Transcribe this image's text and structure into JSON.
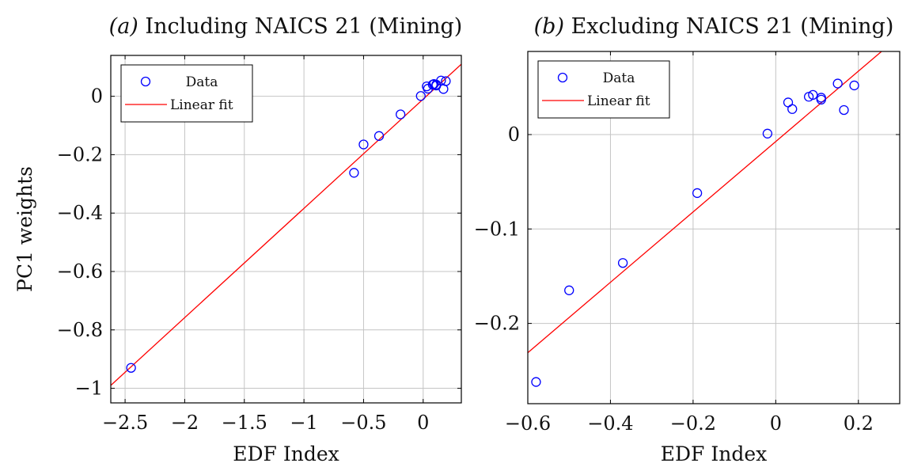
{
  "chart_data": [
    {
      "type": "scatter",
      "title_prefix": "(a)",
      "title": "Including NAICS 21 (Mining)",
      "xlabel": "EDF Index",
      "ylabel": "PC1 weights",
      "xlim": [
        -2.62,
        0.32
      ],
      "ylim": [
        -1.05,
        0.14
      ],
      "xticks": [
        -2.5,
        -2,
        -1.5,
        -1,
        -0.5,
        0
      ],
      "xtick_labels": [
        "−2.5",
        "−2",
        "−1.5",
        "−1",
        "−0.5",
        "0"
      ],
      "yticks": [
        0,
        -0.2,
        -0.4,
        -0.6,
        -0.8,
        -1
      ],
      "ytick_labels": [
        "0",
        "−0.2",
        "−0.4",
        "−0.6",
        "−0.8",
        "−1"
      ],
      "grid": true,
      "legend": {
        "position": "top-left",
        "entries": [
          "Data",
          "Linear fit"
        ]
      },
      "series": [
        {
          "name": "Data",
          "kind": "points",
          "color": "#0000ff",
          "points": [
            [
              -2.45,
              -0.93
            ],
            [
              -0.58,
              -0.262
            ],
            [
              -0.5,
              -0.165
            ],
            [
              -0.37,
              -0.136
            ],
            [
              -0.19,
              -0.062
            ],
            [
              -0.02,
              0.001
            ],
            [
              0.03,
              0.034
            ],
            [
              0.04,
              0.026
            ],
            [
              0.08,
              0.04
            ],
            [
              0.09,
              0.042
            ],
            [
              0.11,
              0.037
            ],
            [
              0.11,
              0.04
            ],
            [
              0.15,
              0.054
            ],
            [
              0.17,
              0.025
            ],
            [
              0.19,
              0.052
            ]
          ]
        },
        {
          "name": "Linear fit",
          "kind": "line",
          "color": "#ff0000",
          "points": [
            [
              -2.62,
              -0.99
            ],
            [
              0.32,
              0.11
            ]
          ]
        }
      ]
    },
    {
      "type": "scatter",
      "title_prefix": "(b)",
      "title": "Excluding NAICS 21 (Mining)",
      "xlabel": "EDF Index",
      "ylabel": "",
      "xlim": [
        -0.6,
        0.3
      ],
      "ylim": [
        -0.285,
        0.088
      ],
      "xticks": [
        -0.6,
        -0.4,
        -0.2,
        0,
        0.2
      ],
      "xtick_labels": [
        "−0.6",
        "−0.4",
        "−0.2",
        "0",
        "0.2"
      ],
      "yticks": [
        0,
        -0.1,
        -0.2
      ],
      "ytick_labels": [
        "0",
        "−0.1",
        "−0.2"
      ],
      "grid": true,
      "legend": {
        "position": "top-left",
        "entries": [
          "Data",
          "Linear fit"
        ]
      },
      "series": [
        {
          "name": "Data",
          "kind": "points",
          "color": "#0000ff",
          "points": [
            [
              -0.58,
              -0.262
            ],
            [
              -0.5,
              -0.165
            ],
            [
              -0.37,
              -0.136
            ],
            [
              -0.19,
              -0.062
            ],
            [
              -0.02,
              0.001
            ],
            [
              0.03,
              0.034
            ],
            [
              0.04,
              0.027
            ],
            [
              0.08,
              0.04
            ],
            [
              0.09,
              0.042
            ],
            [
              0.11,
              0.037
            ],
            [
              0.11,
              0.039
            ],
            [
              0.15,
              0.054
            ],
            [
              0.165,
              0.026
            ],
            [
              0.19,
              0.052
            ]
          ]
        },
        {
          "name": "Linear fit",
          "kind": "line",
          "color": "#ff0000",
          "points": [
            [
              -0.6,
              -0.231
            ],
            [
              0.256,
              0.088
            ]
          ]
        }
      ]
    }
  ]
}
